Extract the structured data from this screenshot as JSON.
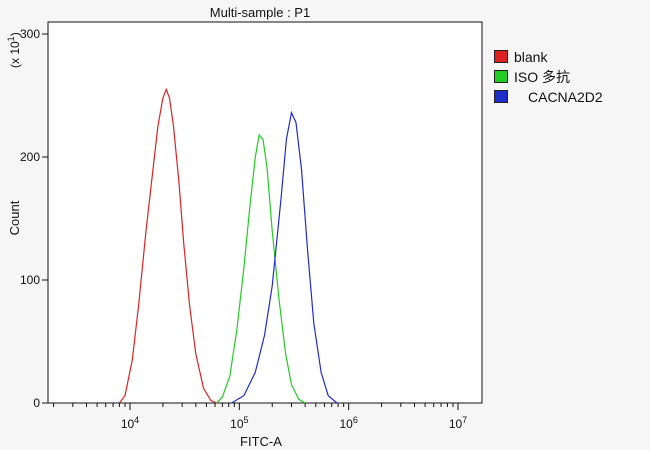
{
  "chart_data": {
    "type": "line",
    "title": "Multi-sample : P1",
    "xlabel": "FITC-A",
    "ylabel": "Count",
    "y_multiplier_label": "(x 10",
    "y_multiplier_exp": "1",
    "y_multiplier_close": ")",
    "x_scale": "log",
    "xlim": [
      10000,
      10000000
    ],
    "ylim": [
      0,
      300
    ],
    "x_ticks": [
      {
        "value": 10000,
        "base": "10",
        "exp": "4"
      },
      {
        "value": 100000,
        "base": "10",
        "exp": "5"
      },
      {
        "value": 1000000,
        "base": "10",
        "exp": "6"
      },
      {
        "value": 10000000,
        "base": "10",
        "exp": "7"
      }
    ],
    "y_ticks": [
      0,
      100,
      200,
      300
    ],
    "grid": false,
    "legend_position": "right",
    "series": [
      {
        "name": "blank",
        "color": "#dd2222",
        "points": [
          [
            8000,
            0
          ],
          [
            9000,
            6
          ],
          [
            10500,
            35
          ],
          [
            12000,
            80
          ],
          [
            14000,
            140
          ],
          [
            16000,
            185
          ],
          [
            18000,
            225
          ],
          [
            20000,
            248
          ],
          [
            21500,
            255
          ],
          [
            23000,
            248
          ],
          [
            25000,
            225
          ],
          [
            28000,
            180
          ],
          [
            31000,
            130
          ],
          [
            35000,
            80
          ],
          [
            40000,
            40
          ],
          [
            47000,
            12
          ],
          [
            55000,
            2
          ],
          [
            62000,
            0
          ]
        ]
      },
      {
        "name": "ISO 多抗",
        "color": "#22cc22",
        "points": [
          [
            62000,
            0
          ],
          [
            70000,
            5
          ],
          [
            82000,
            22
          ],
          [
            95000,
            60
          ],
          [
            110000,
            110
          ],
          [
            125000,
            160
          ],
          [
            140000,
            200
          ],
          [
            152000,
            218
          ],
          [
            165000,
            214
          ],
          [
            180000,
            190
          ],
          [
            200000,
            140
          ],
          [
            230000,
            85
          ],
          [
            265000,
            40
          ],
          [
            300000,
            15
          ],
          [
            350000,
            3
          ],
          [
            400000,
            0
          ]
        ]
      },
      {
        "name": "CACNA2D2",
        "color": "#1f2ccc",
        "points": [
          [
            85000,
            0
          ],
          [
            110000,
            6
          ],
          [
            140000,
            25
          ],
          [
            170000,
            55
          ],
          [
            200000,
            95
          ],
          [
            240000,
            165
          ],
          [
            270000,
            215
          ],
          [
            300000,
            236
          ],
          [
            330000,
            228
          ],
          [
            370000,
            190
          ],
          [
            420000,
            125
          ],
          [
            480000,
            65
          ],
          [
            560000,
            25
          ],
          [
            650000,
            6
          ],
          [
            780000,
            0
          ]
        ]
      }
    ]
  }
}
